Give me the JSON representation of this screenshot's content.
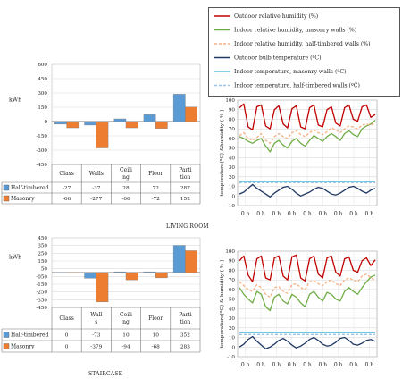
{
  "captions": {
    "living_room": "LIVING ROOM",
    "staircase": "STAIRCASE"
  },
  "colors": {
    "half_timbered": "#5b9bd5",
    "masonry": "#ed7d31",
    "outdoor_rh": "#c00000",
    "indoor_rh_masonry": "#70ad47",
    "indoor_rh_half": "#f4b183",
    "outdoor_temp": "#1f3864",
    "indoor_temp_masonry": "#5bc0de",
    "indoor_temp_half": "#9dc3e6"
  },
  "chart_data": [
    {
      "type": "bar",
      "name": "living-room-energy",
      "ylabel": "kWh",
      "ylim": [
        -450,
        600
      ],
      "yticks": [
        600,
        450,
        300,
        150,
        0,
        -150,
        -300,
        -450
      ],
      "categories": [
        "Glass",
        "Walls",
        "Ceiling",
        "Floor",
        "Partition"
      ],
      "category_lines": [
        [
          "Glass"
        ],
        [
          "Walls"
        ],
        [
          "Ceili",
          "ng"
        ],
        [
          "Floor"
        ],
        [
          "Parti",
          "tion"
        ]
      ],
      "series": [
        {
          "name": "Half-timbered",
          "color": "#5b9bd5",
          "values": [
            -27,
            -37,
            28,
            72,
            287
          ]
        },
        {
          "name": "Masonry",
          "color": "#ed7d31",
          "values": [
            -66,
            -277,
            -66,
            -72,
            152
          ]
        }
      ]
    },
    {
      "type": "bar",
      "name": "staircase-energy",
      "ylabel": "kWh",
      "ylim": [
        -450,
        450
      ],
      "yticks": [
        450,
        350,
        250,
        150,
        50,
        -50,
        -150,
        -250,
        -350,
        -450
      ],
      "ytick_labels": [
        "450",
        "350",
        "250",
        "150",
        "50",
        "-050",
        "-150",
        "-250",
        "-350",
        "-450"
      ],
      "categories": [
        "Glass",
        "Walls",
        "Ceiling",
        "Floor",
        "Partition"
      ],
      "category_lines": [
        [
          "Glass"
        ],
        [
          "Wall",
          "s"
        ],
        [
          "Ceili",
          "ng"
        ],
        [
          "Floor"
        ],
        [
          "Parti",
          "tion"
        ]
      ],
      "series": [
        {
          "name": "Half-timbered",
          "color": "#5b9bd5",
          "values": [
            0,
            -73,
            10,
            10,
            352
          ]
        },
        {
          "name": "Masonry",
          "color": "#ed7d31",
          "values": [
            0,
            -379,
            -94,
            -68,
            283
          ]
        }
      ]
    },
    {
      "type": "line",
      "name": "living-room-climate",
      "ylabel": "temperature(ºC) &humidity ( % )",
      "ylim": [
        -10,
        100
      ],
      "yticks": [
        -10,
        0,
        10,
        20,
        30,
        40,
        50,
        60,
        70,
        80,
        90,
        100
      ],
      "x_tick_labels": [
        "0 h",
        "0 h",
        "0 h",
        "0 h",
        "0 h",
        "0 h",
        "0 h",
        "0 h",
        "0 h"
      ],
      "series": [
        {
          "name": "Outdoor relative humidity (%)",
          "color": "#c00000",
          "dash": false,
          "values": [
            92,
            96,
            72,
            69,
            93,
            95,
            73,
            70,
            90,
            94,
            75,
            71,
            91,
            94,
            72,
            70,
            92,
            95,
            74,
            72,
            90,
            93,
            76,
            73,
            92,
            95,
            80,
            78,
            93,
            95,
            82,
            85
          ]
        },
        {
          "name": "Indoor relative humidity, masonry walls (%)",
          "color": "#70ad47",
          "dash": false,
          "values": [
            62,
            60,
            57,
            55,
            58,
            60,
            52,
            46,
            55,
            58,
            53,
            50,
            57,
            60,
            55,
            52,
            58,
            63,
            60,
            57,
            62,
            65,
            62,
            58,
            65,
            68,
            64,
            62,
            70,
            73,
            75,
            79
          ]
        },
        {
          "name": "Indoor relative humidity, half-timbered walls (%)",
          "color": "#f4b183",
          "dash": true,
          "values": [
            63,
            66,
            60,
            58,
            61,
            65,
            58,
            55,
            62,
            65,
            62,
            60,
            66,
            68,
            64,
            62,
            66,
            69,
            66,
            64,
            67,
            71,
            69,
            66,
            70,
            73,
            72,
            70,
            74,
            75,
            74,
            76
          ]
        },
        {
          "name": "Outdoor bulb temperature (ºC)",
          "color": "#1f3864",
          "dash": false,
          "values": [
            2,
            4,
            8,
            12,
            8,
            5,
            2,
            -1,
            3,
            6,
            9,
            10,
            7,
            3,
            0,
            2,
            4,
            7,
            9,
            8,
            5,
            2,
            1,
            3,
            6,
            9,
            10,
            8,
            5,
            3,
            6,
            8
          ]
        },
        {
          "name": "Indoor temperature, masonry walls (ºC)",
          "color": "#5bc0de",
          "dash": false,
          "values": [
            15,
            15,
            15,
            15,
            15,
            15,
            15,
            15,
            15,
            15,
            15,
            15,
            15,
            15,
            15,
            15,
            15,
            15,
            15,
            15,
            15,
            15,
            15,
            15,
            15,
            15,
            15,
            15,
            15,
            15,
            15,
            15
          ]
        },
        {
          "name": "Indoor temperature, half-timbered walls (ºC)",
          "color": "#9dc3e6",
          "dash": true,
          "values": [
            14,
            14,
            14,
            14,
            14,
            14,
            14,
            14,
            14,
            14,
            14,
            14,
            14,
            14,
            14,
            14,
            14,
            14,
            14,
            14,
            14,
            14,
            14,
            14,
            14,
            14,
            14,
            14,
            14,
            14,
            14,
            14
          ]
        }
      ]
    },
    {
      "type": "line",
      "name": "staircase-climate",
      "ylabel": "temperature(ºC) & humidity ( % )",
      "ylim": [
        -10,
        100
      ],
      "yticks": [
        -10,
        0,
        10,
        20,
        30,
        40,
        50,
        60,
        70,
        80,
        90,
        100
      ],
      "x_tick_labels": [
        "0 h",
        "0 h",
        "0 h",
        "0 h",
        "0 h",
        "0 h",
        "0 h",
        "0 h",
        "0 h"
      ],
      "series": [
        {
          "name": "Outdoor relative humidity (%)",
          "color": "#c00000",
          "dash": false,
          "values": [
            90,
            95,
            75,
            68,
            92,
            95,
            72,
            70,
            93,
            95,
            74,
            70,
            94,
            96,
            72,
            69,
            92,
            95,
            76,
            72,
            93,
            95,
            78,
            74,
            92,
            94,
            80,
            78,
            90,
            93,
            85,
            91
          ]
        },
        {
          "name": "Indoor relative humidity, masonry walls (%)",
          "color": "#70ad47",
          "dash": false,
          "values": [
            62,
            55,
            50,
            46,
            58,
            55,
            42,
            38,
            52,
            55,
            48,
            45,
            55,
            52,
            46,
            42,
            55,
            58,
            52,
            48,
            57,
            55,
            50,
            48,
            58,
            62,
            58,
            55,
            62,
            68,
            73,
            75
          ]
        },
        {
          "name": "Indoor relative humidity, half-timbered walls (%)",
          "color": "#f4b183",
          "dash": true,
          "values": [
            68,
            64,
            60,
            58,
            65,
            62,
            55,
            52,
            62,
            63,
            58,
            56,
            65,
            66,
            62,
            60,
            68,
            69,
            66,
            64,
            68,
            70,
            66,
            64,
            70,
            72,
            70,
            68,
            74,
            76,
            72,
            70
          ]
        },
        {
          "name": "Outdoor bulb temperature (ºC)",
          "color": "#1f3864",
          "dash": false,
          "values": [
            0,
            3,
            8,
            11,
            6,
            2,
            -2,
            0,
            3,
            7,
            9,
            6,
            2,
            -1,
            1,
            4,
            8,
            10,
            7,
            3,
            1,
            2,
            5,
            9,
            10,
            7,
            3,
            2,
            4,
            7,
            8,
            6
          ]
        },
        {
          "name": "Indoor temperature, masonry walls (ºC)",
          "color": "#5bc0de",
          "dash": false,
          "values": [
            15,
            15,
            15,
            15,
            15,
            15,
            15,
            15,
            15,
            15,
            15,
            15,
            15,
            15,
            15,
            15,
            15,
            15,
            15,
            15,
            15,
            15,
            15,
            15,
            15,
            15,
            15,
            15,
            15,
            15,
            15,
            15
          ]
        },
        {
          "name": "Indoor temperature, half-timbered walls (ºC)",
          "color": "#9dc3e6",
          "dash": true,
          "values": [
            13,
            13,
            13,
            13,
            13,
            13,
            13,
            13,
            13,
            13,
            13,
            13,
            13,
            13,
            13,
            13,
            13,
            13,
            13,
            13,
            13,
            13,
            13,
            13,
            13,
            13,
            13,
            13,
            13,
            13,
            13,
            13
          ]
        }
      ]
    }
  ]
}
